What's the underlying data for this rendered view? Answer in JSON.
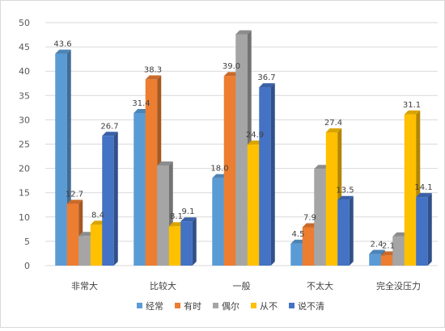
{
  "chart_data": {
    "type": "bar",
    "title": "",
    "xlabel": "",
    "ylabel": "",
    "categories": [
      "非常大",
      "比较大",
      "一般",
      "不太大",
      "完全没压力"
    ],
    "ylim": [
      0,
      50
    ],
    "yticks": [
      0,
      5,
      10,
      15,
      20,
      25,
      30,
      35,
      40,
      45,
      50
    ],
    "grid": true,
    "legend_position": "bottom",
    "series": [
      {
        "name": "经常",
        "color": "#5b9bd5",
        "values": [
          43.6,
          31.4,
          18.0,
          4.5,
          2.4
        ],
        "labels": [
          "43.6",
          "31.4",
          "18.0",
          "4.5",
          "2.4"
        ]
      },
      {
        "name": "有时",
        "color": "#ed7d31",
        "values": [
          12.7,
          38.3,
          39.0,
          7.9,
          2.1
        ],
        "labels": [
          "12.7",
          "38.3",
          "39.0",
          "7.9",
          "2.1"
        ]
      },
      {
        "name": "偶尔",
        "color": "#a5a5a5",
        "values": [
          6.1,
          20.6,
          47.6,
          19.9,
          6.0
        ],
        "labels": [
          "",
          "",
          "",
          "",
          ""
        ]
      },
      {
        "name": "从不",
        "color": "#ffc000",
        "values": [
          8.4,
          8.1,
          24.9,
          27.4,
          31.1
        ],
        "labels": [
          "8.4",
          "8.1",
          "24.9",
          "27.4",
          "31.1"
        ]
      },
      {
        "name": "说不清",
        "color": "#4472c4",
        "values": [
          26.7,
          9.1,
          36.7,
          13.5,
          14.1
        ],
        "labels": [
          "26.7",
          "9.1",
          "36.7",
          "13.5",
          "14.1"
        ]
      }
    ]
  }
}
